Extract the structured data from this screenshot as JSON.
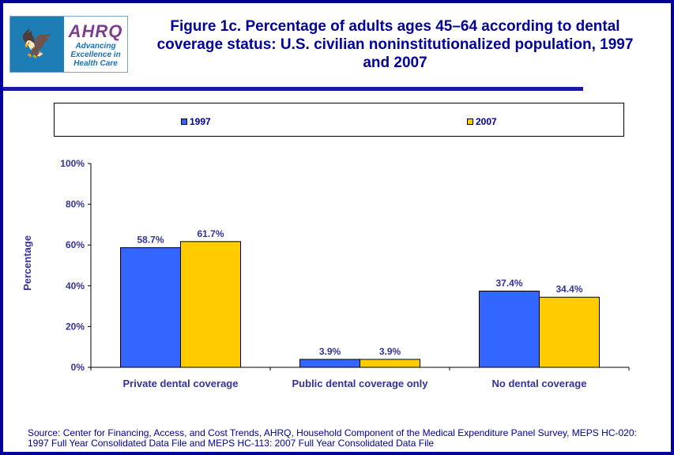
{
  "logo": {
    "agency": "AHRQ",
    "tagline": "Advancing Excellence in Health Care",
    "seal": "Department of Health & Human Services USA"
  },
  "title": "Figure 1c. Percentage of adults ages 45–64 according to dental coverage status: U.S. civilian noninstitutionalized population, 1997 and 2007",
  "source": "Source: Center for Financing, Access, and Cost Trends, AHRQ, Household Component of the Medical Expenditure Panel Survey, MEPS HC-020: 1997 Full Year Consolidated Data File and MEPS HC-113: 2007 Full Year Consolidated Data File",
  "chart_data": {
    "type": "bar",
    "title": "Figure 1c. Percentage of adults ages 45–64 according to dental coverage status: U.S. civilian noninstitutionalized population, 1997 and 2007",
    "ylabel": "Percentage",
    "xlabel": "",
    "ylim": [
      0,
      100
    ],
    "yticks": [
      "0%",
      "20%",
      "40%",
      "60%",
      "80%",
      "100%"
    ],
    "categories": [
      "Private dental coverage",
      "Public dental coverage only",
      "No dental coverage"
    ],
    "series": [
      {
        "name": "1997",
        "values": [
          58.7,
          3.9,
          37.4
        ],
        "labels": [
          "58.7%",
          "3.9%",
          "37.4%"
        ],
        "color": "#3366ff"
      },
      {
        "name": "2007",
        "values": [
          61.7,
          3.9,
          34.4
        ],
        "labels": [
          "61.7%",
          "3.9%",
          "34.4%"
        ],
        "color": "#ffcc00"
      }
    ],
    "legend": "top",
    "grid": false
  }
}
